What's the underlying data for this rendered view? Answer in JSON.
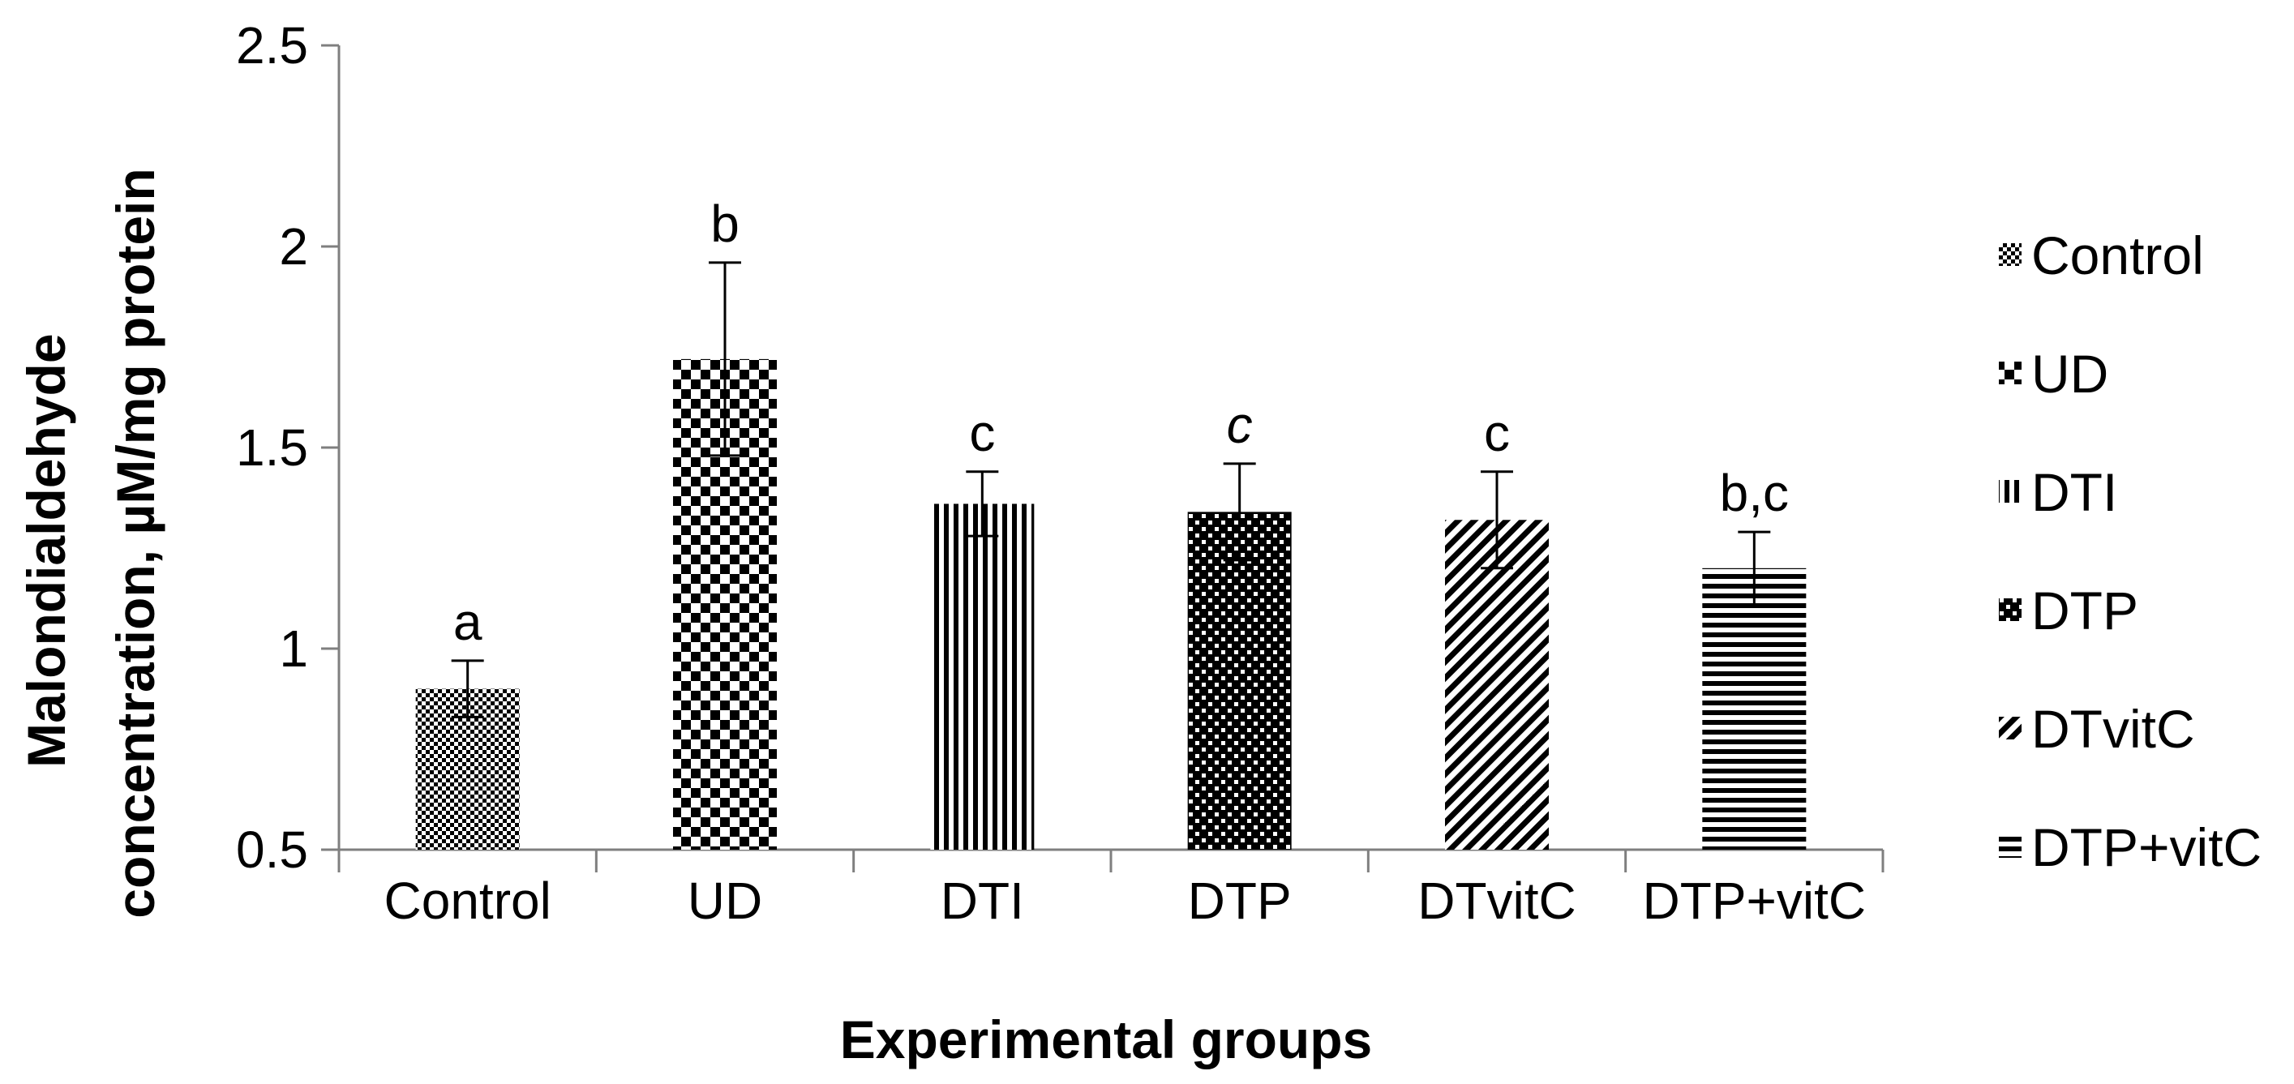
{
  "chart_data": {
    "type": "bar",
    "title": "",
    "xlabel": "Experimental groups",
    "ylabel_lines": [
      "Malondialdehyde",
      "concentration, µM/mg protein"
    ],
    "ylim": [
      0.5,
      2.5
    ],
    "yticks": [
      "0.5",
      "1",
      "1.5",
      "2",
      "2.5"
    ],
    "ytick_values": [
      0.5,
      1,
      1.5,
      2,
      2.5
    ],
    "categories": [
      "Control",
      "UD",
      "DTI",
      "DTP",
      "DTvitC",
      "DTP+vitC"
    ],
    "values": [
      0.9,
      1.72,
      1.36,
      1.34,
      1.32,
      1.2
    ],
    "error": [
      0.07,
      0.24,
      0.08,
      0.12,
      0.12,
      0.09
    ],
    "significance_labels": [
      "a",
      "b",
      "c",
      "c",
      "c",
      "b,c"
    ],
    "significance_italic": [
      false,
      false,
      false,
      true,
      false,
      false
    ],
    "grid": false,
    "legend_position": "right",
    "legend": [
      "Control",
      "UD",
      "DTI",
      "DTP",
      "DTvitC",
      "DTP+vitC"
    ],
    "patterns": [
      "fine-checker",
      "large-checker",
      "vertical-lines",
      "dark-checker",
      "diagonal-lines",
      "horizontal-lines"
    ]
  }
}
